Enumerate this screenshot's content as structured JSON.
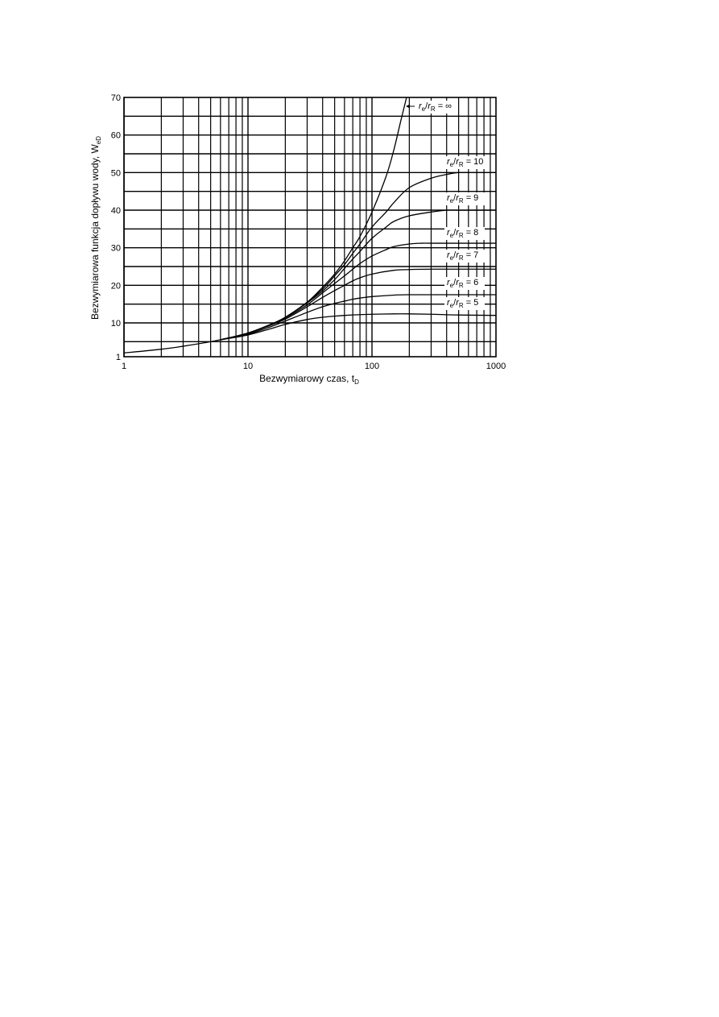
{
  "chart_data": {
    "type": "line",
    "xlabel": "Bezwymiarowy czas, t",
    "xlabel_sub": "D",
    "ylabel": "Bezwymiarowa funkcja dopływu wody, W",
    "ylabel_sub": "eD",
    "x_scale": "log",
    "xlim": [
      1,
      1000
    ],
    "ylim": [
      1,
      70
    ],
    "grid": true,
    "x_ticks": [
      {
        "value": 1,
        "label": "1"
      },
      {
        "value": 10,
        "label": "10"
      },
      {
        "value": 100,
        "label": "100"
      },
      {
        "value": 1000,
        "label": "1000"
      }
    ],
    "y_ticks": [
      {
        "value": 1,
        "label": "1"
      },
      {
        "value": 10,
        "label": "10"
      },
      {
        "value": 20,
        "label": "20"
      },
      {
        "value": 30,
        "label": "30"
      },
      {
        "value": 40,
        "label": "40"
      },
      {
        "value": 50,
        "label": "50"
      },
      {
        "value": 60,
        "label": "60"
      },
      {
        "value": 70,
        "label": "70"
      }
    ],
    "series": [
      {
        "name": "r_e/r_R = ∞",
        "label": {
          "p1": "r",
          "s1": "e",
          "mid": "/",
          "p2": "r",
          "s2": "R",
          "tail": " = ∞"
        },
        "x": [
          1,
          2,
          3,
          5,
          7,
          10,
          15,
          20,
          30,
          40,
          50,
          60,
          70,
          80,
          100,
          130,
          150,
          170,
          190
        ],
        "y": [
          2,
          3,
          3.8,
          5,
          6,
          7.3,
          9.5,
          11.5,
          15.5,
          19.5,
          23,
          26.5,
          30,
          33,
          39.5,
          49,
          56,
          63.5,
          70
        ]
      },
      {
        "name": "r_e/r_R = 10",
        "label": {
          "p1": "r",
          "s1": "e",
          "mid": "/",
          "p2": "r",
          "s2": "R",
          "tail": " = 10"
        },
        "x": [
          6,
          10,
          15,
          20,
          30,
          40,
          50,
          60,
          70,
          80,
          100,
          130,
          150,
          200,
          300,
          400,
          500,
          700,
          1000
        ],
        "y": [
          5.5,
          7.3,
          9.5,
          11.5,
          15.5,
          19,
          22.5,
          25.5,
          28.5,
          31,
          35.5,
          39.5,
          42,
          46,
          48.5,
          49.5,
          50,
          50,
          50
        ]
      },
      {
        "name": "r_e/r_R = 9",
        "label": {
          "p1": "r",
          "s1": "e",
          "mid": "/",
          "p2": "r",
          "s2": "R",
          "tail": " = 9"
        },
        "x": [
          6,
          10,
          15,
          20,
          30,
          40,
          50,
          60,
          70,
          80,
          100,
          130,
          150,
          200,
          300,
          400,
          500,
          700,
          1000
        ],
        "y": [
          5.5,
          7.3,
          9.5,
          11.5,
          15.3,
          18.5,
          21.5,
          24.5,
          27,
          29,
          32.5,
          35.5,
          37,
          38.5,
          39.5,
          40,
          40,
          40,
          40
        ]
      },
      {
        "name": "r_e/r_R = 8",
        "label": {
          "p1": "r",
          "s1": "e",
          "mid": "/",
          "p2": "r",
          "s2": "R",
          "tail": " = 8"
        },
        "x": [
          6,
          10,
          15,
          20,
          30,
          40,
          50,
          60,
          70,
          80,
          100,
          130,
          150,
          200,
          250,
          300,
          500,
          1000
        ],
        "y": [
          5.5,
          7.3,
          9.5,
          11.3,
          14.8,
          18,
          20.5,
          22.5,
          24.3,
          25.8,
          27.8,
          29.5,
          30.3,
          31,
          31.2,
          31.2,
          31.2,
          31.2
        ]
      },
      {
        "name": "r_e/r_R = 7",
        "label": {
          "p1": "r",
          "s1": "e",
          "mid": "/",
          "p2": "r",
          "s2": "R",
          "tail": " = 7"
        },
        "x": [
          6,
          10,
          15,
          20,
          30,
          40,
          50,
          60,
          70,
          80,
          100,
          150,
          200,
          300,
          500,
          1000
        ],
        "y": [
          5.5,
          7.2,
          9.3,
          11,
          14.3,
          16.8,
          18.6,
          20,
          21.2,
          22,
          23,
          24,
          24.2,
          24.3,
          24.3,
          24.3
        ]
      },
      {
        "name": "r_e/r_R = 6",
        "label": {
          "p1": "r",
          "s1": "e",
          "mid": "/",
          "p2": "r",
          "s2": "R",
          "tail": " = 6"
        },
        "x": [
          6,
          10,
          15,
          20,
          30,
          40,
          50,
          60,
          70,
          80,
          100,
          150,
          200,
          300,
          500,
          1000
        ],
        "y": [
          5.5,
          7,
          8.9,
          10.5,
          12.8,
          14.3,
          15.2,
          15.8,
          16.3,
          16.6,
          17,
          17.4,
          17.5,
          17.5,
          17.5,
          17.5
        ]
      },
      {
        "name": "r_e/r_R = 5",
        "label": {
          "p1": "r",
          "s1": "e",
          "mid": "/",
          "p2": "r",
          "s2": "R",
          "tail": " = 5"
        },
        "x": [
          6,
          10,
          15,
          20,
          30,
          40,
          50,
          60,
          80,
          100,
          150,
          200,
          300,
          500,
          1000
        ],
        "y": [
          5.5,
          6.8,
          8.4,
          9.6,
          10.9,
          11.5,
          11.8,
          12,
          12.2,
          12.3,
          12.4,
          12.4,
          12.3,
          12.1,
          12
        ]
      }
    ]
  }
}
